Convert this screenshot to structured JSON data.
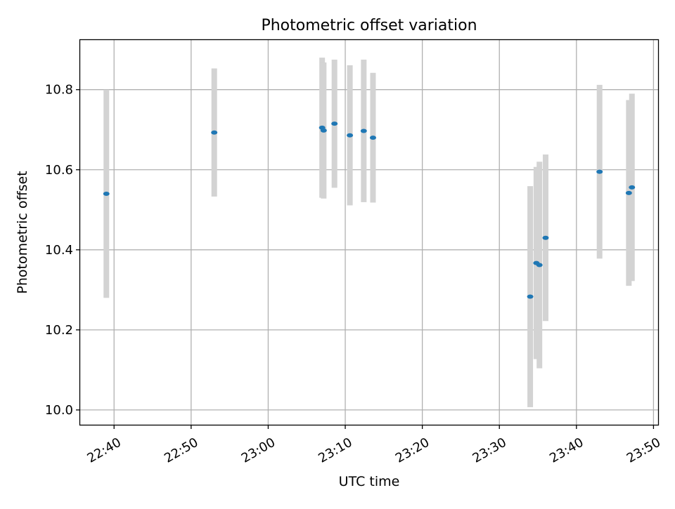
{
  "chart_data": {
    "type": "scatter",
    "title": "Photometric offset variation",
    "xlabel": "UTC time",
    "ylabel": "Photometric offset",
    "xlim": [
      "22:35:36",
      "23:50:36"
    ],
    "ylim": [
      9.963,
      10.924
    ],
    "x_ticks": [
      "22:40",
      "22:50",
      "23:00",
      "23:10",
      "23:20",
      "23:30",
      "23:40",
      "23:50"
    ],
    "y_ticks": [
      "10.0",
      "10.2",
      "10.4",
      "10.6",
      "10.8"
    ],
    "grid": true,
    "point_color": "#1f77b4",
    "errorbar_color": "#d3d3d3",
    "points": [
      {
        "t": "22:39:00",
        "y": 10.54,
        "err": 0.26
      },
      {
        "t": "22:53:00",
        "y": 10.693,
        "err": 0.16
      },
      {
        "t": "23:07:00",
        "y": 10.705,
        "err": 0.175
      },
      {
        "t": "23:07:12",
        "y": 10.698,
        "err": 0.17
      },
      {
        "t": "23:08:36",
        "y": 10.715,
        "err": 0.16
      },
      {
        "t": "23:10:36",
        "y": 10.686,
        "err": 0.175
      },
      {
        "t": "23:12:24",
        "y": 10.697,
        "err": 0.178
      },
      {
        "t": "23:13:36",
        "y": 10.68,
        "err": 0.162
      },
      {
        "t": "23:34:00",
        "y": 10.283,
        "err": 0.276
      },
      {
        "t": "23:34:48",
        "y": 10.367,
        "err": 0.24
      },
      {
        "t": "23:35:12",
        "y": 10.362,
        "err": 0.258
      },
      {
        "t": "23:36:00",
        "y": 10.43,
        "err": 0.208
      },
      {
        "t": "23:43:00",
        "y": 10.595,
        "err": 0.217
      },
      {
        "t": "23:46:48",
        "y": 10.542,
        "err": 0.232
      },
      {
        "t": "23:47:12",
        "y": 10.556,
        "err": 0.234
      }
    ]
  }
}
